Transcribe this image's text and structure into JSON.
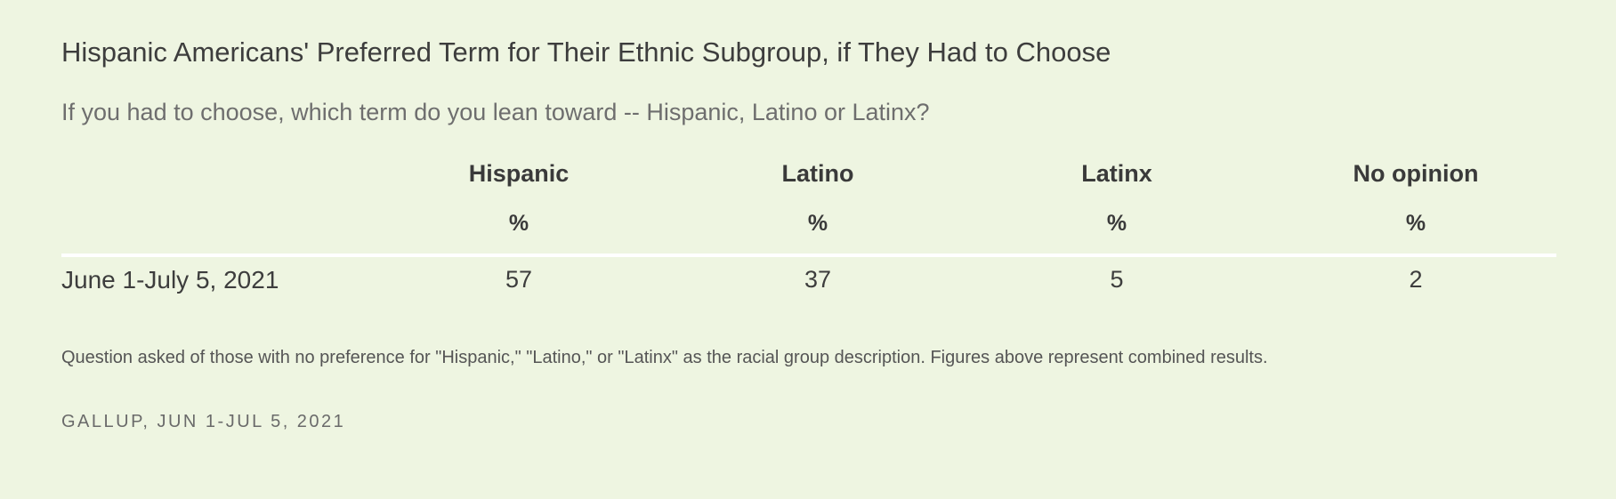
{
  "title": "Hispanic Americans' Preferred Term for Their Ethnic Subgroup, if They Had to Choose",
  "subtitle": "If you had to choose, which term do you lean toward -- Hispanic, Latino or Latinx?",
  "note": "Question asked of those with no preference for \"Hispanic,\" \"Latino,\" or \"Latinx\" as the racial group description. Figures above represent combined results.",
  "source": "GALLUP, JUN 1-JUL 5, 2021",
  "chart_data": {
    "type": "table",
    "title": "Hispanic Americans' Preferred Term for Their Ethnic Subgroup, if They Had to Choose",
    "subtitle": "If you had to choose, which term do you lean toward -- Hispanic, Latino or Latinx?",
    "columns": [
      "Hispanic",
      "Latino",
      "Latinx",
      "No opinion"
    ],
    "units": [
      "%",
      "%",
      "%",
      "%"
    ],
    "rows": [
      {
        "label": "June 1-July 5, 2021",
        "values": [
          "57",
          "37",
          "5",
          "2"
        ]
      }
    ]
  },
  "colors": {
    "background": "#eef5e1",
    "text": "#3a3a3a",
    "divider": "#ffffff"
  }
}
